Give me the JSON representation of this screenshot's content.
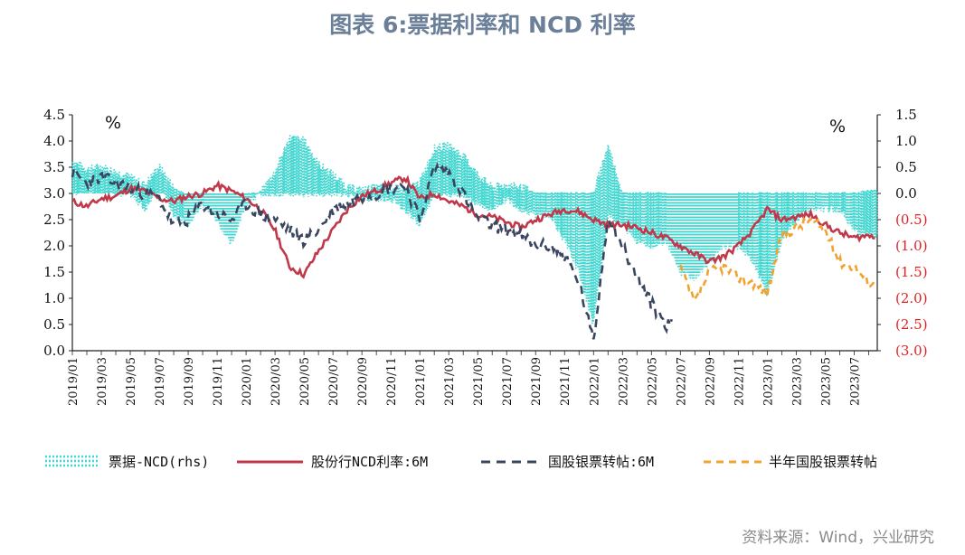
{
  "title": "图表 6:票据利率和 NCD 利率",
  "source": "资料来源：Wind，兴业研究",
  "chart_data": {
    "type": "line",
    "left_unit": "%",
    "right_unit": "%",
    "ylim_left": [
      0.0,
      4.5
    ],
    "ylim_right": [
      -3.0,
      1.5
    ],
    "yticks_left": [
      "4.5",
      "4.0",
      "3.5",
      "3.0",
      "2.5",
      "2.0",
      "1.5",
      "1.0",
      "0.5",
      "0.0"
    ],
    "yticks_right": [
      "1.5",
      "1.0",
      "0.5",
      "0.0",
      "(0.5)",
      "(1.0)",
      "(1.5)",
      "(2.0)",
      "(2.5)",
      "(3.0)"
    ],
    "x_ticks": [
      "2019/01",
      "2019/03",
      "2019/05",
      "2019/07",
      "2019/09",
      "2019/11",
      "2020/01",
      "2020/03",
      "2020/05",
      "2020/07",
      "2020/09",
      "2020/11",
      "2021/01",
      "2021/03",
      "2021/05",
      "2021/07",
      "2021/09",
      "2021/11",
      "2022/01",
      "2022/03",
      "2022/05",
      "2022/07",
      "2022/09",
      "2022/11",
      "2023/01",
      "2023/03",
      "2023/05",
      "2023/07"
    ],
    "colors": {
      "spread": "#40d6d0",
      "ncd": "#c0394a",
      "bill6m": "#3a4660",
      "halfyear": "#f0a330",
      "negative_tick": "#e02020"
    },
    "series": [
      {
        "name": "票据-NCD(rhs)",
        "axis": "right",
        "style": "dotted-area",
        "x": [
          "2019/01",
          "2019/02",
          "2019/03",
          "2019/04",
          "2019/05",
          "2019/06",
          "2019/07",
          "2019/08",
          "2019/09",
          "2019/10",
          "2019/11",
          "2019/12",
          "2020/01",
          "2020/02",
          "2020/03",
          "2020/04",
          "2020/05",
          "2020/06",
          "2020/07",
          "2020/08",
          "2020/09",
          "2020/10",
          "2020/11",
          "2020/12",
          "2021/01",
          "2021/02",
          "2021/03",
          "2021/04",
          "2021/05",
          "2021/06",
          "2021/07",
          "2021/08",
          "2021/09",
          "2021/10",
          "2021/11",
          "2021/12",
          "2022/01",
          "2022/02",
          "2022/03",
          "2022/04",
          "2022/05",
          "2022/06",
          "2022/07",
          "2022/08",
          "2022/09",
          "2022/10",
          "2022/11",
          "2022/12",
          "2023/01",
          "2023/02",
          "2023/03",
          "2023/04",
          "2023/05",
          "2023/06",
          "2023/07",
          "2023/08"
        ],
        "upper": [
          0.6,
          0.45,
          0.5,
          0.4,
          0.3,
          0.15,
          0.5,
          0.1,
          -0.05,
          0.0,
          -0.1,
          -0.2,
          0.0,
          0.0,
          0.4,
          1.05,
          1.0,
          0.55,
          0.35,
          0.1,
          0.05,
          0.1,
          0.1,
          0.05,
          0.2,
          0.85,
          0.9,
          0.7,
          0.35,
          0.1,
          0.15,
          0.1,
          0.0,
          0.0,
          0.0,
          0.0,
          0.0,
          0.9,
          0.0,
          0.0,
          0.0,
          0.0,
          -1.3,
          -1.5,
          -1.2,
          -0.7,
          0.0,
          0.0,
          0.0,
          0.0,
          0.0,
          0.0,
          0.0,
          0.0,
          0.0,
          0.05
        ],
        "lower": [
          0.0,
          0.1,
          0.2,
          0.0,
          0.0,
          -0.3,
          0.2,
          -0.4,
          -0.6,
          -0.2,
          -0.5,
          -0.95,
          -0.2,
          0.0,
          0.0,
          0.0,
          0.0,
          0.0,
          0.0,
          0.0,
          -0.1,
          -0.1,
          -0.1,
          -0.3,
          -0.6,
          0.0,
          0.0,
          0.0,
          -0.2,
          -0.3,
          -0.1,
          -0.3,
          -0.4,
          -0.4,
          -0.9,
          -1.5,
          -2.5,
          -0.4,
          -0.6,
          -0.9,
          -1.0,
          -0.9,
          -1.5,
          -1.6,
          -1.3,
          -1.0,
          -1.0,
          -1.3,
          -1.9,
          -0.9,
          -0.5,
          -0.3,
          -0.3,
          -0.3,
          -0.7,
          -0.8
        ]
      },
      {
        "name": "股份行NCD利率:6M",
        "axis": "left",
        "style": "solid",
        "x": [
          "2019/01",
          "2019/02",
          "2019/03",
          "2019/04",
          "2019/05",
          "2019/06",
          "2019/07",
          "2019/08",
          "2019/09",
          "2019/10",
          "2019/11",
          "2019/12",
          "2020/01",
          "2020/02",
          "2020/03",
          "2020/04",
          "2020/05",
          "2020/06",
          "2020/07",
          "2020/08",
          "2020/09",
          "2020/10",
          "2020/11",
          "2020/12",
          "2021/01",
          "2021/02",
          "2021/03",
          "2021/04",
          "2021/05",
          "2021/06",
          "2021/07",
          "2021/08",
          "2021/09",
          "2021/10",
          "2021/11",
          "2021/12",
          "2022/01",
          "2022/02",
          "2022/03",
          "2022/04",
          "2022/05",
          "2022/06",
          "2022/07",
          "2022/08",
          "2022/09",
          "2022/10",
          "2022/11",
          "2022/12",
          "2023/01",
          "2023/02",
          "2023/03",
          "2023/04",
          "2023/05",
          "2023/06",
          "2023/07",
          "2023/08"
        ],
        "values": [
          2.85,
          2.75,
          2.9,
          2.95,
          3.1,
          3.05,
          2.9,
          2.85,
          2.95,
          3.0,
          3.15,
          3.05,
          2.9,
          2.7,
          2.3,
          1.6,
          1.45,
          1.9,
          2.3,
          2.7,
          2.95,
          3.05,
          3.2,
          3.3,
          2.9,
          3.0,
          2.85,
          2.75,
          2.6,
          2.55,
          2.45,
          2.35,
          2.5,
          2.6,
          2.7,
          2.65,
          2.5,
          2.4,
          2.4,
          2.35,
          2.25,
          2.15,
          2.0,
          1.85,
          1.7,
          1.8,
          2.0,
          2.3,
          2.7,
          2.5,
          2.55,
          2.6,
          2.4,
          2.25,
          2.15,
          2.2
        ]
      },
      {
        "name": "国股银票转帖:6M",
        "axis": "left",
        "style": "dashed",
        "x": [
          "2019/01",
          "2019/02",
          "2019/03",
          "2019/04",
          "2019/05",
          "2019/06",
          "2019/07",
          "2019/08",
          "2019/09",
          "2019/10",
          "2019/11",
          "2019/12",
          "2020/01",
          "2020/02",
          "2020/03",
          "2020/04",
          "2020/05",
          "2020/06",
          "2020/07",
          "2020/08",
          "2020/09",
          "2020/10",
          "2020/11",
          "2020/12",
          "2021/01",
          "2021/02",
          "2021/03",
          "2021/04",
          "2021/05",
          "2021/06",
          "2021/07",
          "2021/08",
          "2021/09",
          "2021/10",
          "2021/11",
          "2021/12",
          "2022/01",
          "2022/02",
          "2022/03",
          "2022/04",
          "2022/05",
          "2022/06"
        ],
        "values": [
          3.4,
          3.2,
          3.3,
          3.2,
          3.1,
          3.0,
          2.9,
          2.4,
          2.5,
          2.8,
          2.6,
          2.5,
          2.8,
          2.6,
          2.5,
          2.3,
          2.1,
          2.3,
          2.7,
          2.8,
          2.95,
          3.0,
          3.1,
          3.15,
          2.5,
          3.5,
          3.4,
          3.0,
          2.5,
          2.4,
          2.3,
          2.2,
          2.0,
          2.0,
          1.8,
          1.3,
          0.15,
          2.6,
          2.0,
          1.4,
          0.9,
          0.5
        ]
      },
      {
        "name": "半年国股银票转帖",
        "axis": "left",
        "style": "dashed",
        "x": [
          "2022/07",
          "2022/08",
          "2022/09",
          "2022/10",
          "2022/11",
          "2022/12",
          "2023/01",
          "2023/02",
          "2023/03",
          "2023/04",
          "2023/05",
          "2023/06",
          "2023/07",
          "2023/08"
        ],
        "values": [
          1.6,
          0.9,
          1.5,
          1.6,
          1.4,
          1.3,
          1.1,
          2.2,
          2.35,
          2.5,
          2.3,
          1.7,
          1.6,
          1.3
        ]
      }
    ]
  }
}
